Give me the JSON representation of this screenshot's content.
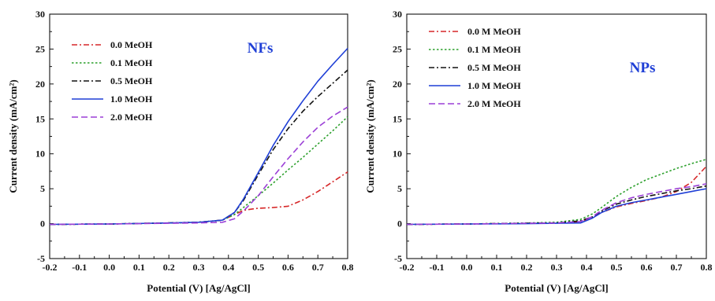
{
  "chart_data": [
    {
      "type": "line",
      "panel_label": "NFs",
      "xlabel": "Potential (V) [Ag/AgCl]",
      "ylabel": "Current density (mA/cm²)",
      "xlim": [
        -0.2,
        0.8
      ],
      "ylim": [
        -5,
        30
      ],
      "xticks": [
        -0.2,
        -0.1,
        0.0,
        0.1,
        0.2,
        0.3,
        0.4,
        0.5,
        0.6,
        0.7,
        0.8
      ],
      "xtick_labels": [
        "-0.2",
        "-0.1",
        "0.0",
        "0.1",
        "0.2",
        "0.3",
        "0.4",
        "0.5",
        "0.6",
        "0.7",
        "0.8"
      ],
      "yticks": [
        -5,
        0,
        5,
        10,
        15,
        20,
        25,
        30
      ],
      "ytick_labels": [
        "-5",
        "0",
        "5",
        "10",
        "15",
        "20",
        "25",
        "30"
      ],
      "legend_position": "top-left",
      "grid": false,
      "series": [
        {
          "name": "0.0  MeOH",
          "color": "#d62728",
          "dash": "dashdot",
          "x": [
            -0.2,
            0.0,
            0.2,
            0.3,
            0.38,
            0.42,
            0.45,
            0.48,
            0.5,
            0.55,
            0.6,
            0.65,
            0.7,
            0.75,
            0.8
          ],
          "y": [
            -0.1,
            -0.05,
            0.1,
            0.2,
            0.5,
            1.3,
            1.9,
            2.1,
            2.2,
            2.3,
            2.5,
            3.4,
            4.6,
            6.0,
            7.4
          ]
        },
        {
          "name": "0.1  MeOH",
          "color": "#2ca02c",
          "dash": "dot",
          "x": [
            -0.2,
            0.0,
            0.2,
            0.3,
            0.38,
            0.42,
            0.45,
            0.5,
            0.55,
            0.6,
            0.65,
            0.7,
            0.75,
            0.8
          ],
          "y": [
            -0.1,
            -0.05,
            0.1,
            0.2,
            0.5,
            1.3,
            2.3,
            4.0,
            5.8,
            7.7,
            9.5,
            11.4,
            13.3,
            15.3
          ]
        },
        {
          "name": "0.5  MeOH",
          "color": "#111111",
          "dash": "dashdot",
          "x": [
            -0.2,
            0.0,
            0.2,
            0.3,
            0.38,
            0.42,
            0.45,
            0.5,
            0.55,
            0.6,
            0.65,
            0.7,
            0.75,
            0.8
          ],
          "y": [
            -0.1,
            -0.05,
            0.1,
            0.2,
            0.5,
            1.6,
            3.3,
            7.0,
            10.6,
            13.6,
            16.1,
            18.2,
            20.1,
            22.0
          ]
        },
        {
          "name": "1.0  MeOH",
          "color": "#1f3fd6",
          "dash": "solid",
          "x": [
            -0.2,
            0.0,
            0.2,
            0.3,
            0.38,
            0.42,
            0.45,
            0.5,
            0.55,
            0.6,
            0.65,
            0.7,
            0.75,
            0.8
          ],
          "y": [
            -0.1,
            -0.05,
            0.1,
            0.2,
            0.5,
            1.6,
            3.5,
            7.3,
            11.2,
            14.6,
            17.6,
            20.4,
            22.8,
            25.1
          ]
        },
        {
          "name": "2.0  MeOH",
          "color": "#9b3fd6",
          "dash": "dash",
          "x": [
            -0.2,
            0.0,
            0.2,
            0.3,
            0.38,
            0.42,
            0.45,
            0.5,
            0.55,
            0.6,
            0.65,
            0.7,
            0.75,
            0.8
          ],
          "y": [
            -0.1,
            -0.05,
            0.05,
            0.1,
            0.2,
            0.7,
            1.8,
            4.0,
            6.7,
            9.3,
            11.7,
            13.8,
            15.4,
            16.7
          ]
        }
      ]
    },
    {
      "type": "line",
      "panel_label": "NPs",
      "xlabel": "Potential (V) [Ag/AgCl]",
      "ylabel": "Current density (mA/cm²)",
      "xlim": [
        -0.2,
        0.8
      ],
      "ylim": [
        -5,
        30
      ],
      "xticks": [
        -0.2,
        -0.1,
        0.0,
        0.1,
        0.2,
        0.3,
        0.4,
        0.5,
        0.6,
        0.7,
        0.8
      ],
      "xtick_labels": [
        "-0.2",
        "-0.1",
        "0.0",
        "0.1",
        "0.2",
        "0.3",
        "0.4",
        "0.5",
        "0.6",
        "0.7",
        "0.8"
      ],
      "yticks": [
        -5,
        0,
        5,
        10,
        15,
        20,
        25,
        30
      ],
      "ytick_labels": [
        "-5",
        "0",
        "5",
        "10",
        "15",
        "20",
        "25",
        "30"
      ],
      "legend_position": "top-left",
      "grid": false,
      "series": [
        {
          "name": "0.0 M  MeOH",
          "color": "#d62728",
          "dash": "dashdot",
          "x": [
            -0.2,
            0.0,
            0.2,
            0.3,
            0.38,
            0.42,
            0.45,
            0.5,
            0.55,
            0.6,
            0.65,
            0.7,
            0.75,
            0.8
          ],
          "y": [
            -0.1,
            -0.05,
            0.05,
            0.1,
            0.3,
            0.9,
            1.6,
            2.4,
            2.9,
            3.3,
            3.8,
            4.6,
            5.9,
            8.2
          ]
        },
        {
          "name": "0.1 M  MeOH",
          "color": "#2ca02c",
          "dash": "dot",
          "x": [
            -0.2,
            0.0,
            0.2,
            0.3,
            0.38,
            0.42,
            0.45,
            0.5,
            0.55,
            0.6,
            0.65,
            0.7,
            0.75,
            0.8
          ],
          "y": [
            -0.1,
            -0.05,
            0.1,
            0.2,
            0.6,
            1.4,
            2.3,
            3.9,
            5.2,
            6.3,
            7.1,
            7.9,
            8.6,
            9.2
          ]
        },
        {
          "name": "0.5 M  MeOH",
          "color": "#111111",
          "dash": "dashdot",
          "x": [
            -0.2,
            0.0,
            0.2,
            0.3,
            0.38,
            0.42,
            0.45,
            0.5,
            0.55,
            0.6,
            0.65,
            0.7,
            0.75,
            0.8
          ],
          "y": [
            -0.1,
            -0.05,
            0.05,
            0.1,
            0.4,
            1.0,
            1.8,
            2.8,
            3.4,
            3.9,
            4.3,
            4.7,
            5.0,
            5.4
          ]
        },
        {
          "name": "1.0 M  MeOH",
          "color": "#1f3fd6",
          "dash": "solid",
          "x": [
            -0.2,
            0.0,
            0.2,
            0.3,
            0.38,
            0.42,
            0.45,
            0.5,
            0.55,
            0.6,
            0.65,
            0.7,
            0.75,
            0.8
          ],
          "y": [
            -0.1,
            -0.05,
            0.0,
            0.05,
            0.1,
            0.8,
            1.6,
            2.5,
            3.0,
            3.4,
            3.8,
            4.2,
            4.6,
            5.0
          ]
        },
        {
          "name": "2.0 M  MeOH",
          "color": "#9b3fd6",
          "dash": "dash",
          "x": [
            -0.2,
            0.0,
            0.2,
            0.3,
            0.38,
            0.42,
            0.45,
            0.5,
            0.55,
            0.6,
            0.65,
            0.7,
            0.75,
            0.8
          ],
          "y": [
            -0.1,
            -0.05,
            0.05,
            0.1,
            0.3,
            1.0,
            1.9,
            3.0,
            3.7,
            4.2,
            4.6,
            5.0,
            5.3,
            5.7
          ]
        }
      ]
    }
  ]
}
